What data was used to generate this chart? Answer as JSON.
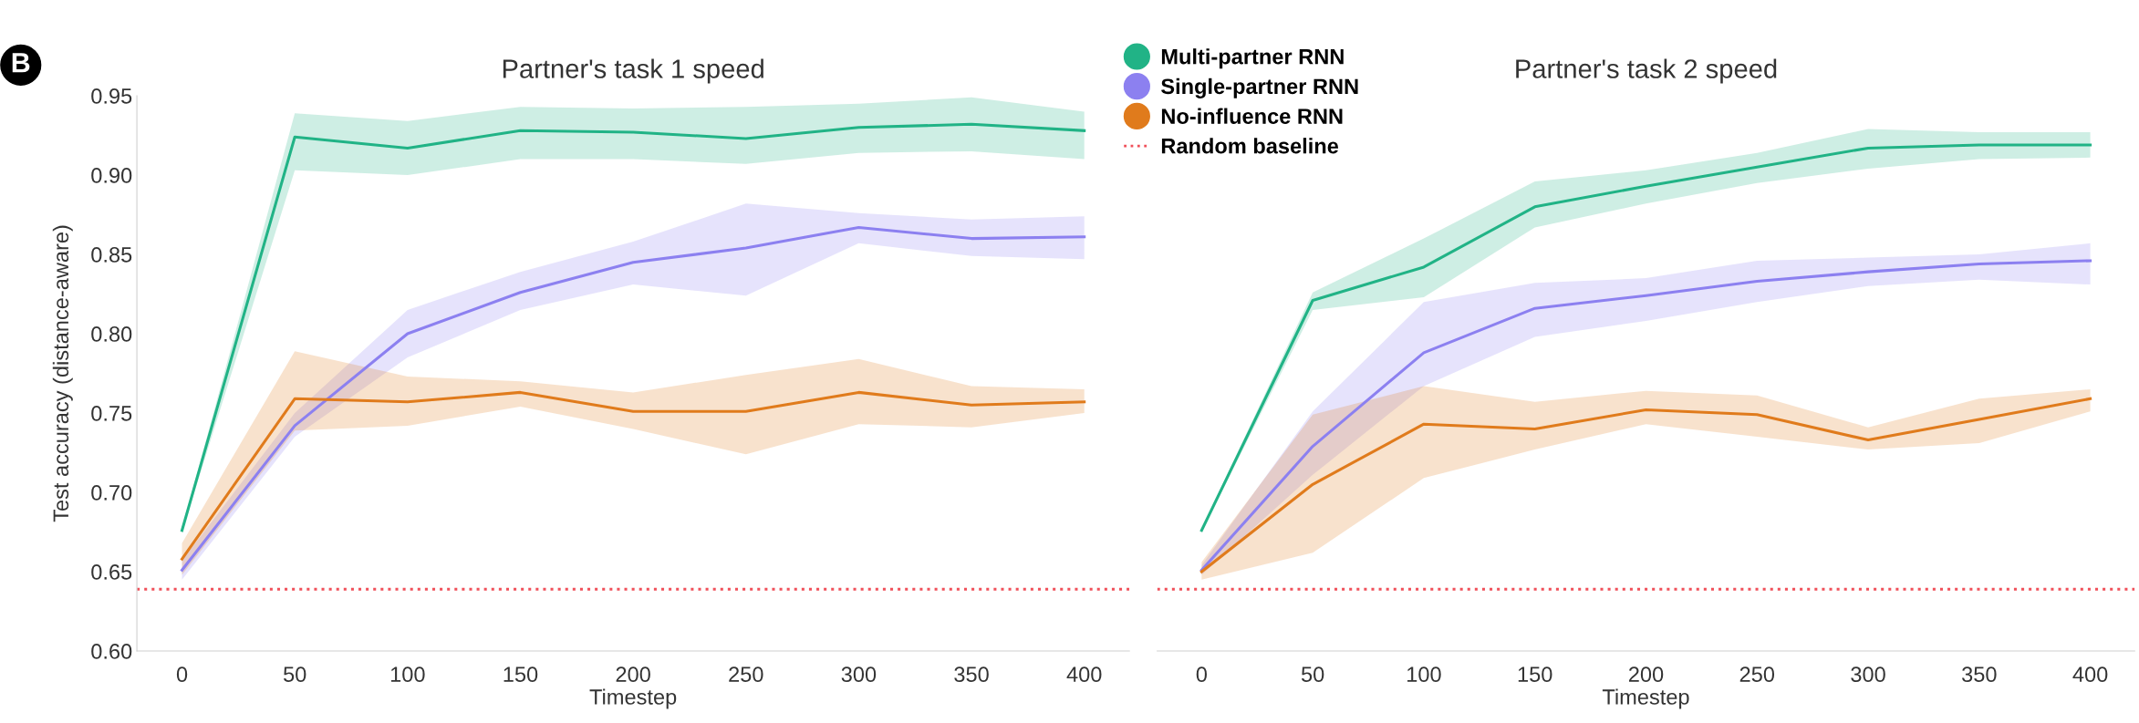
{
  "chart_data": [
    {
      "type": "line",
      "title": "Partner's task 1 speed",
      "xlabel": "Timestep",
      "ylabel": "Test accuracy (distance-aware)",
      "annotations": [
        "B"
      ],
      "x": [
        0,
        50,
        100,
        150,
        200,
        250,
        300,
        350,
        400
      ],
      "xlim": [
        -20,
        420
      ],
      "xticks": [
        0,
        50,
        100,
        150,
        200,
        250,
        300,
        350,
        400
      ],
      "ylim": [
        0.6,
        0.95
      ],
      "yticks": [
        {
          "value": 0.6,
          "label": "0.60"
        },
        0.65,
        {
          "value": 0.7,
          "label": "0.70"
        },
        0.75,
        {
          "value": 0.8,
          "label": "0.80"
        },
        0.85,
        {
          "value": 0.9,
          "label": "0.90"
        },
        0.95
      ],
      "grid": false,
      "legend": "top right",
      "marker": "none",
      "line_style": "solid",
      "series": [
        {
          "name": "Multi-partner RNN",
          "color": "#21b386",
          "values": [
            0.676,
            0.924,
            0.917,
            0.928,
            0.927,
            0.923,
            0.93,
            0.932,
            0.928
          ],
          "lower": [
            0.675,
            0.903,
            0.9,
            0.91,
            0.91,
            0.907,
            0.914,
            0.915,
            0.91
          ],
          "upper": [
            0.677,
            0.939,
            0.934,
            0.943,
            0.942,
            0.943,
            0.945,
            0.949,
            0.94
          ]
        },
        {
          "name": "Single-partner RNN",
          "color": "#8c80f0",
          "values": [
            0.651,
            0.742,
            0.8,
            0.826,
            0.845,
            0.854,
            0.867,
            0.86,
            0.861
          ],
          "lower": [
            0.645,
            0.735,
            0.785,
            0.815,
            0.831,
            0.824,
            0.857,
            0.849,
            0.847
          ],
          "upper": [
            0.657,
            0.75,
            0.815,
            0.839,
            0.858,
            0.882,
            0.876,
            0.872,
            0.874
          ]
        },
        {
          "name": "No-influence RNN",
          "color": "#e07b1c",
          "values": [
            0.658,
            0.759,
            0.757,
            0.763,
            0.751,
            0.751,
            0.763,
            0.755,
            0.757
          ],
          "lower": [
            0.648,
            0.739,
            0.742,
            0.754,
            0.74,
            0.724,
            0.743,
            0.741,
            0.75
          ],
          "upper": [
            0.668,
            0.789,
            0.773,
            0.77,
            0.763,
            0.774,
            0.784,
            0.767,
            0.765
          ]
        }
      ],
      "ref_lines": [
        {
          "axis": "y",
          "value": 0.639,
          "label": "Random baseline",
          "color": "#f0505a",
          "line_style": "dotted"
        }
      ]
    },
    {
      "type": "line",
      "title": "Partner's task 2 speed",
      "xlabel": "Timestep",
      "x": [
        0,
        50,
        100,
        150,
        200,
        250,
        300,
        350,
        400
      ],
      "xlim": [
        -20,
        420
      ],
      "xticks": [
        0,
        50,
        100,
        150,
        200,
        250,
        300,
        350,
        400
      ],
      "ylim": [
        0.6,
        0.95
      ],
      "tick_labels": "x",
      "grid": false,
      "marker": "none",
      "line_style": "solid",
      "series": [
        {
          "color": "#21b386",
          "values": [
            0.676,
            0.821,
            0.842,
            0.88,
            0.893,
            0.905,
            0.917,
            0.919,
            0.919
          ],
          "lower": [
            0.675,
            0.815,
            0.823,
            0.867,
            0.882,
            0.895,
            0.904,
            0.91,
            0.911
          ],
          "upper": [
            0.677,
            0.826,
            0.86,
            0.896,
            0.903,
            0.914,
            0.929,
            0.927,
            0.927
          ]
        },
        {
          "color": "#8c80f0",
          "values": [
            0.651,
            0.729,
            0.788,
            0.816,
            0.824,
            0.833,
            0.839,
            0.844,
            0.846
          ],
          "lower": [
            0.648,
            0.711,
            0.767,
            0.798,
            0.808,
            0.82,
            0.83,
            0.834,
            0.831
          ],
          "upper": [
            0.654,
            0.751,
            0.82,
            0.832,
            0.835,
            0.846,
            0.848,
            0.85,
            0.857
          ]
        },
        {
          "color": "#e07b1c",
          "values": [
            0.65,
            0.705,
            0.743,
            0.74,
            0.752,
            0.749,
            0.733,
            0.746,
            0.759
          ],
          "lower": [
            0.645,
            0.662,
            0.709,
            0.727,
            0.743,
            0.735,
            0.727,
            0.731,
            0.751
          ],
          "upper": [
            0.656,
            0.749,
            0.767,
            0.757,
            0.764,
            0.761,
            0.741,
            0.759,
            0.765
          ]
        }
      ],
      "ref_lines": [
        {
          "axis": "y",
          "value": 0.639,
          "color": "#f0505a",
          "line_style": "dotted"
        }
      ]
    }
  ]
}
